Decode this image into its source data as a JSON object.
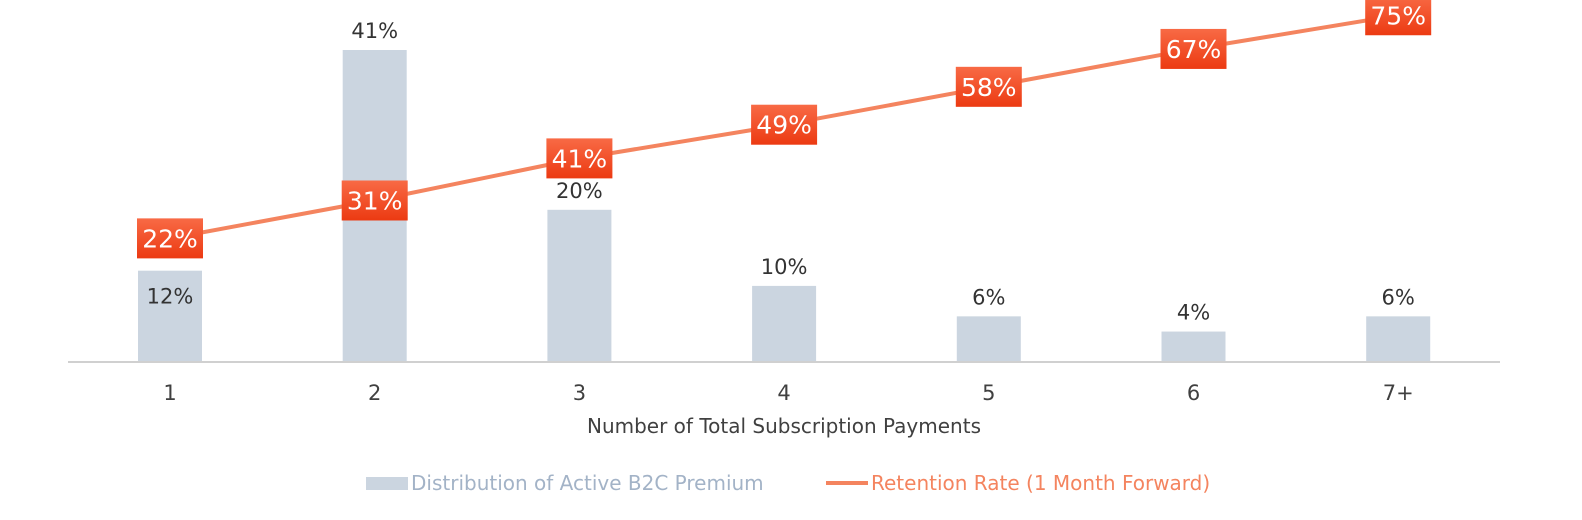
{
  "colors": {
    "bar": "#cbd5e0",
    "line": "#f4845f",
    "label_box_top": "#f86a45",
    "label_box_bottom": "#ec3a12",
    "axis": "#d0d0d0",
    "legend_bar_text": "#a3b3c7",
    "legend_line_text": "#f4845f"
  },
  "chart_data": {
    "type": "bar",
    "categories": [
      "1",
      "2",
      "3",
      "4",
      "5",
      "6",
      "7+"
    ],
    "xlabel": "Number of Total Subscription Payments",
    "series": [
      {
        "name": "Distribution of Active B2C Premium",
        "type": "bar",
        "values": [
          12,
          41,
          20,
          10,
          6,
          4,
          6
        ],
        "labels": [
          "12%",
          "41%",
          "20%",
          "10%",
          "6%",
          "4%",
          "6%"
        ]
      },
      {
        "name": "Retention Rate (1 Month Forward)",
        "type": "line",
        "values": [
          22,
          31,
          41,
          49,
          58,
          67,
          75
        ],
        "labels": [
          "22%",
          "31%",
          "41%",
          "49%",
          "58%",
          "67%",
          "75%"
        ]
      }
    ],
    "legend": "bottom",
    "grid": false
  }
}
